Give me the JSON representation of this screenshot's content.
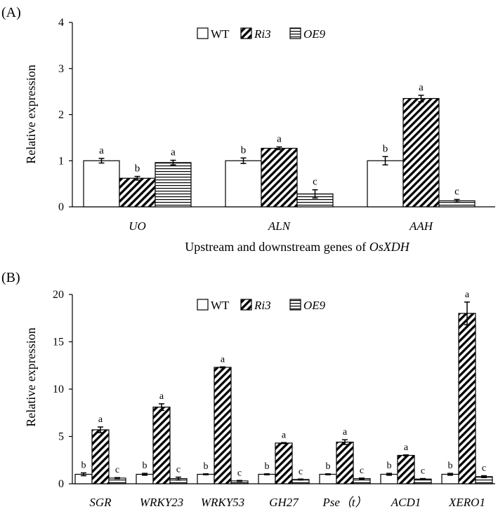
{
  "chart_data": [
    {
      "panel_label": "(A)",
      "type": "bar",
      "title": "",
      "xlabel_prefix": "Upstream and downstream genes of ",
      "xlabel_italic": "OsXDH",
      "ylabel": "Relative expression",
      "ylim": [
        0,
        4
      ],
      "yticks": [
        "0",
        "1",
        "2",
        "3",
        "4"
      ],
      "categories": [
        "UO",
        "ALN",
        "AAH"
      ],
      "legend": [
        "WT",
        "Ri3",
        "OE9"
      ],
      "series": [
        {
          "name": "WT",
          "values": [
            1.0,
            1.0,
            1.0
          ],
          "errors": [
            0.05,
            0.06,
            0.09
          ],
          "letters": [
            "a",
            "b",
            "b"
          ]
        },
        {
          "name": "Ri3",
          "values": [
            0.62,
            1.27,
            2.35
          ],
          "errors": [
            0.04,
            0.03,
            0.07
          ],
          "letters": [
            "b",
            "a",
            "a"
          ]
        },
        {
          "name": "OE9",
          "values": [
            0.96,
            0.28,
            0.13
          ],
          "errors": [
            0.05,
            0.09,
            0.03
          ],
          "letters": [
            "a",
            "c",
            "c"
          ]
        }
      ]
    },
    {
      "panel_label": "(B)",
      "type": "bar",
      "title": "",
      "xlabel_prefix": "",
      "xlabel_italic": "",
      "ylabel": "Relative expression",
      "ylim": [
        0,
        20
      ],
      "yticks": [
        "0",
        "5",
        "10",
        "15",
        "20"
      ],
      "categories": [
        "SGR",
        "WRKY23",
        "WRKY53",
        "GH27",
        "Pse（t）",
        "ACD1",
        "XERO1"
      ],
      "legend": [
        "WT",
        "Ri3",
        "OE9"
      ],
      "series": [
        {
          "name": "WT",
          "values": [
            1.0,
            1.0,
            1.0,
            1.0,
            1.0,
            1.0,
            1.0
          ],
          "errors": [
            0.15,
            0.1,
            0.05,
            0.05,
            0.05,
            0.1,
            0.1
          ],
          "letters": [
            "b",
            "b",
            "b",
            "b",
            "b",
            "b",
            "b"
          ]
        },
        {
          "name": "Ri3",
          "values": [
            5.7,
            8.1,
            12.3,
            4.3,
            4.4,
            3.0,
            18.0
          ],
          "errors": [
            0.3,
            0.35,
            0.05,
            0.05,
            0.25,
            0.05,
            1.2
          ],
          "letters": [
            "a",
            "a",
            "a",
            "a",
            "a",
            "a",
            "a"
          ]
        },
        {
          "name": "OE9",
          "values": [
            0.6,
            0.55,
            0.3,
            0.45,
            0.55,
            0.5,
            0.75
          ],
          "errors": [
            0.05,
            0.15,
            0.05,
            0.05,
            0.05,
            0.05,
            0.1
          ],
          "letters": [
            "c",
            "c",
            "c",
            "c",
            "c",
            "c",
            "c"
          ]
        }
      ]
    }
  ]
}
